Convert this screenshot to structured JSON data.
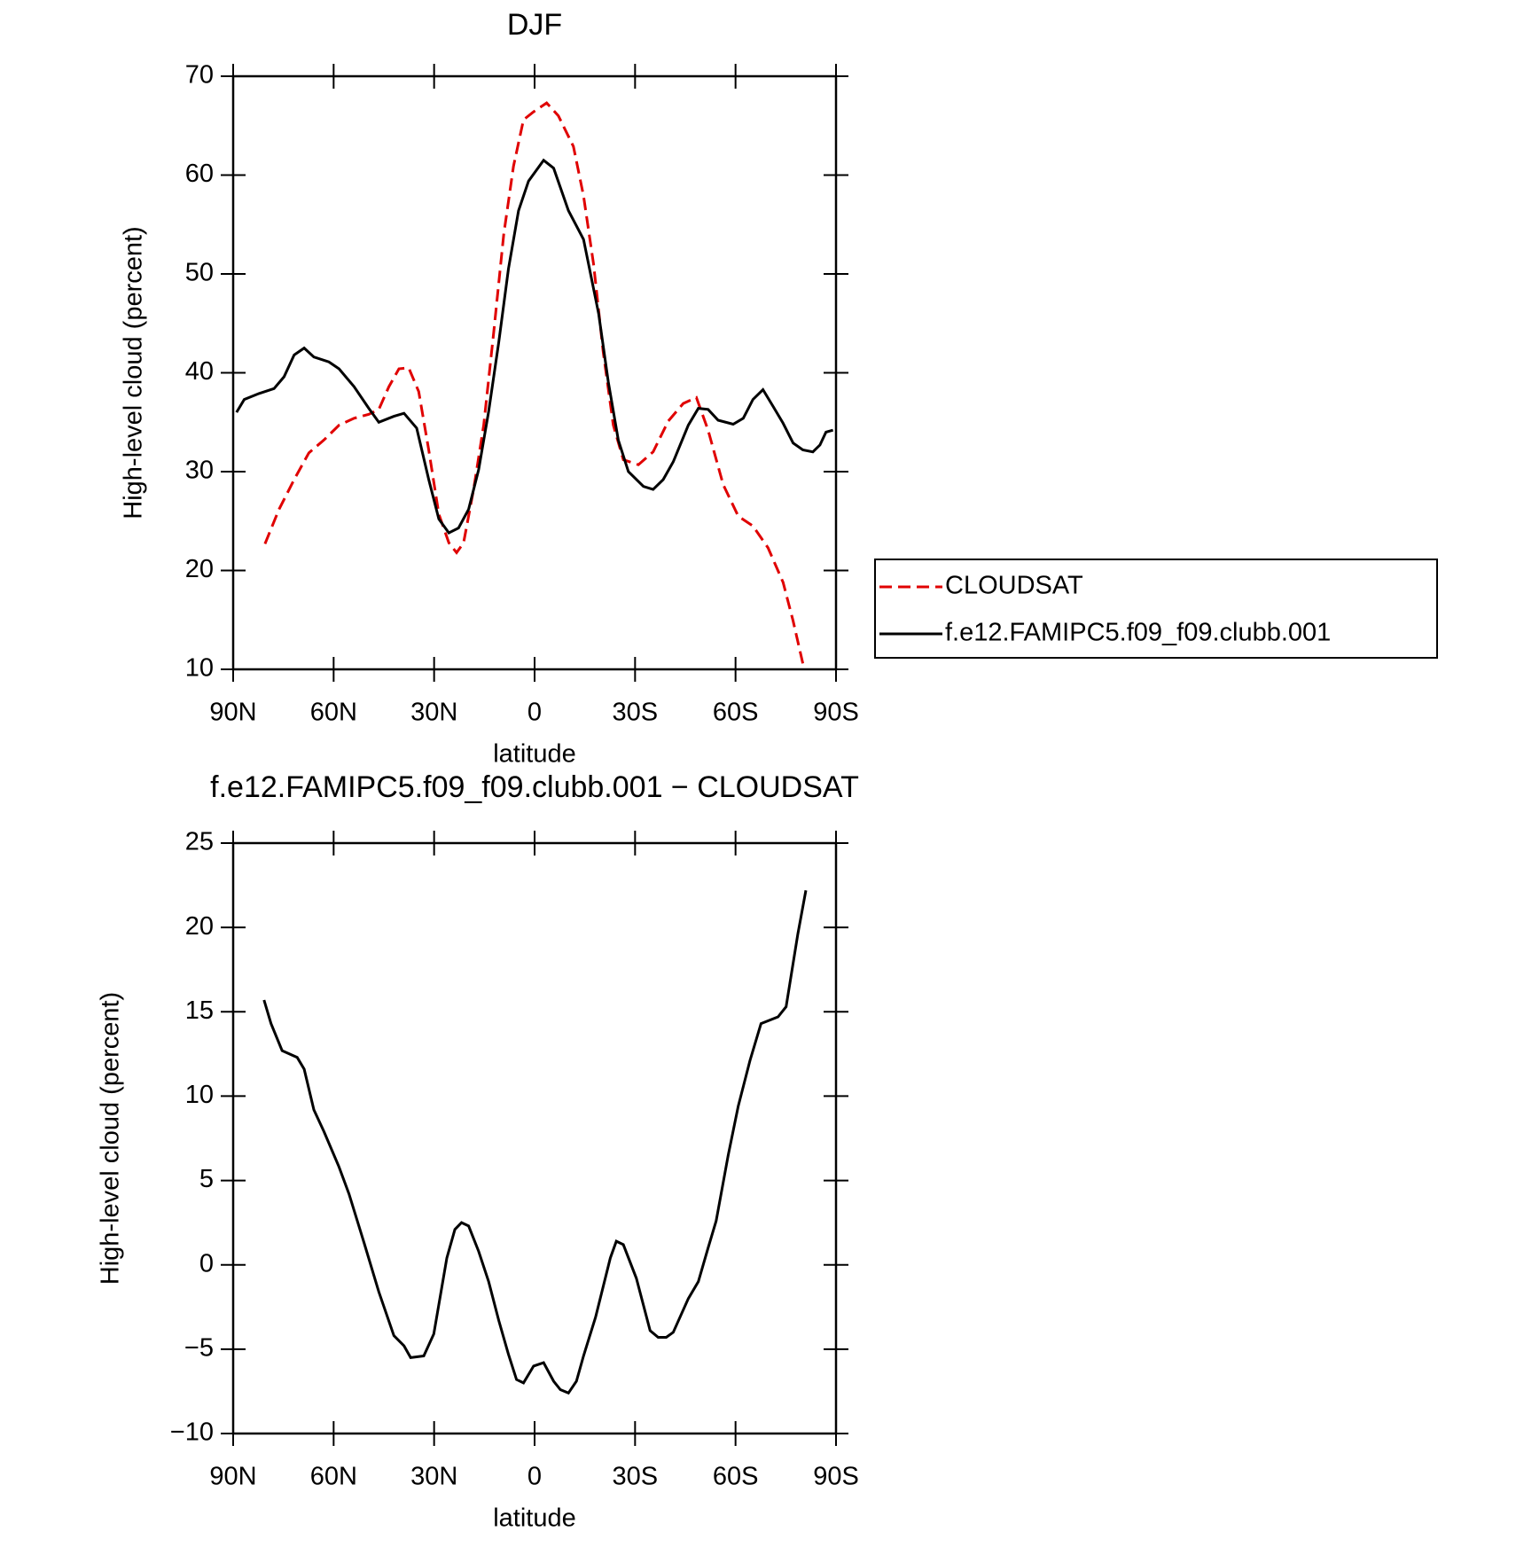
{
  "chart_data": [
    {
      "type": "line",
      "title": "DJF",
      "xlabel": "latitude",
      "ylabel": "High-level cloud (percent)",
      "xlim": [
        90,
        -90
      ],
      "xticks": [
        {
          "value": 90,
          "label": "90N"
        },
        {
          "value": 60,
          "label": "60N"
        },
        {
          "value": 30,
          "label": "30N"
        },
        0,
        {
          "value": -30,
          "label": "30S"
        },
        {
          "value": -60,
          "label": "60S"
        },
        {
          "value": -90,
          "label": "90S"
        }
      ],
      "ylim": [
        10,
        70
      ],
      "yticks": [
        10,
        20,
        30,
        40,
        50,
        60,
        70
      ],
      "legend": "right",
      "series": [
        {
          "name": "CLOUDSAT",
          "color": "#e00000",
          "linestyle": "dashed",
          "x": [
            80.5,
            76.3,
            71.8,
            67.4,
            62.9,
            58.4,
            53.9,
            49.5,
            46.5,
            43.5,
            40.5,
            37.6,
            34.6,
            31.6,
            28.6,
            25.6,
            23.3,
            21.2,
            18.2,
            15.2,
            12.2,
            9.2,
            6.3,
            3.3,
            0.3,
            -3.6,
            -7.1,
            -11.6,
            -14.6,
            -17.6,
            -20.5,
            -23.5,
            -26.5,
            -31.0,
            -35.4,
            -39.9,
            -44.4,
            -48.3,
            -51.8,
            -56.3,
            -60.8,
            -65.2,
            -69.7,
            -74.2,
            -77.2,
            -80.5
          ],
          "values": [
            22.7,
            26.2,
            29.2,
            31.9,
            33.2,
            34.7,
            35.4,
            35.8,
            36.3,
            38.6,
            40.4,
            40.5,
            38.1,
            32.2,
            25.7,
            22.8,
            21.8,
            22.8,
            28.2,
            34.7,
            44.1,
            54.0,
            60.9,
            65.6,
            66.4,
            67.3,
            66.0,
            62.9,
            57.9,
            51.0,
            42.1,
            34.7,
            31.2,
            30.7,
            32.0,
            35.1,
            36.9,
            37.5,
            34.2,
            28.7,
            25.5,
            24.5,
            22.3,
            18.8,
            14.9,
            10.0
          ]
        },
        {
          "name": "f.e12.FAMIPC5.f09_f09.clubb.001",
          "color": "#000000",
          "linestyle": "solid",
          "x": [
            89,
            86.7,
            82.3,
            77.8,
            74.8,
            71.8,
            68.8,
            65.9,
            61.4,
            58.4,
            53.9,
            49.5,
            46.5,
            42.0,
            39.0,
            35.2,
            31.6,
            28.6,
            25.6,
            22.7,
            19.7,
            16.7,
            13.7,
            10.7,
            7.8,
            4.8,
            1.8,
            -2.7,
            -5.7,
            -10.1,
            -14.6,
            -19.1,
            -22.0,
            -25.0,
            -28.0,
            -32.5,
            -35.4,
            -38.4,
            -41.4,
            -45.9,
            -48.9,
            -51.8,
            -54.8,
            -59.3,
            -62.3,
            -65.2,
            -68.2,
            -71.2,
            -74.2,
            -77.2,
            -80.1,
            -83.1,
            -85.2,
            -87.0,
            -89.1
          ],
          "values": [
            36.0,
            37.3,
            37.9,
            38.4,
            39.6,
            41.8,
            42.5,
            41.6,
            41.1,
            40.4,
            38.6,
            36.4,
            35.0,
            35.6,
            35.9,
            34.4,
            29.2,
            25.2,
            23.8,
            24.3,
            26.2,
            30.2,
            36.1,
            43.1,
            50.5,
            56.4,
            59.4,
            61.5,
            60.7,
            56.4,
            53.5,
            46.0,
            39.1,
            33.2,
            30.0,
            28.5,
            28.2,
            29.2,
            31.0,
            34.7,
            36.4,
            36.3,
            35.2,
            34.8,
            35.4,
            37.3,
            38.3,
            36.6,
            34.9,
            32.9,
            32.2,
            32.0,
            32.7,
            34.0,
            34.2
          ]
        }
      ]
    },
    {
      "type": "line",
      "title": "f.e12.FAMIPC5.f09_f09.clubb.001 − CLOUDSAT",
      "xlabel": "latitude",
      "ylabel": "High-level cloud (percent)",
      "xlim": [
        90,
        -90
      ],
      "xticks": [
        {
          "value": 90,
          "label": "90N"
        },
        {
          "value": 60,
          "label": "60N"
        },
        {
          "value": 30,
          "label": "30N"
        },
        0,
        {
          "value": -30,
          "label": "30S"
        },
        {
          "value": -60,
          "label": "60S"
        },
        {
          "value": -90,
          "label": "90S"
        }
      ],
      "ylim": [
        -10,
        25
      ],
      "yticks": [
        {
          "value": -10,
          "label": "−10"
        },
        {
          "value": -5,
          "label": "−5"
        },
        0,
        5,
        10,
        15,
        20,
        25
      ],
      "series": [
        {
          "color": "#000000",
          "linestyle": "solid",
          "x": [
            80.8,
            78.7,
            75.4,
            70.9,
            68.8,
            65.9,
            62.9,
            58.4,
            55.4,
            50.9,
            46.5,
            42.0,
            39.0,
            37.0,
            33.1,
            30.1,
            26.2,
            23.8,
            21.8,
            19.7,
            16.7,
            13.7,
            10.7,
            7.8,
            5.4,
            3.3,
            0.3,
            -2.7,
            -5.7,
            -7.7,
            -10.1,
            -12.5,
            -14.6,
            -18.2,
            -22.6,
            -24.4,
            -26.5,
            -30.4,
            -34.5,
            -36.9,
            -39.3,
            -41.4,
            -45.9,
            -48.9,
            -51.8,
            -54.2,
            -57.8,
            -60.8,
            -64.3,
            -67.6,
            -72.7,
            -75.1,
            -78.6,
            -81.0
          ],
          "values": [
            15.7,
            14.3,
            12.7,
            12.3,
            11.6,
            9.2,
            7.9,
            5.8,
            4.2,
            1.3,
            -1.6,
            -4.2,
            -4.8,
            -5.5,
            -5.4,
            -4.1,
            0.4,
            2.1,
            2.5,
            2.3,
            0.8,
            -1.0,
            -3.3,
            -5.3,
            -6.8,
            -7.0,
            -6.0,
            -5.8,
            -6.9,
            -7.4,
            -7.6,
            -6.9,
            -5.4,
            -3.1,
            0.4,
            1.4,
            1.2,
            -0.8,
            -3.9,
            -4.3,
            -4.3,
            -4.0,
            -2.0,
            -1.0,
            1.0,
            2.6,
            6.5,
            9.4,
            12.1,
            14.3,
            14.7,
            15.3,
            19.6,
            22.2
          ]
        }
      ]
    }
  ]
}
